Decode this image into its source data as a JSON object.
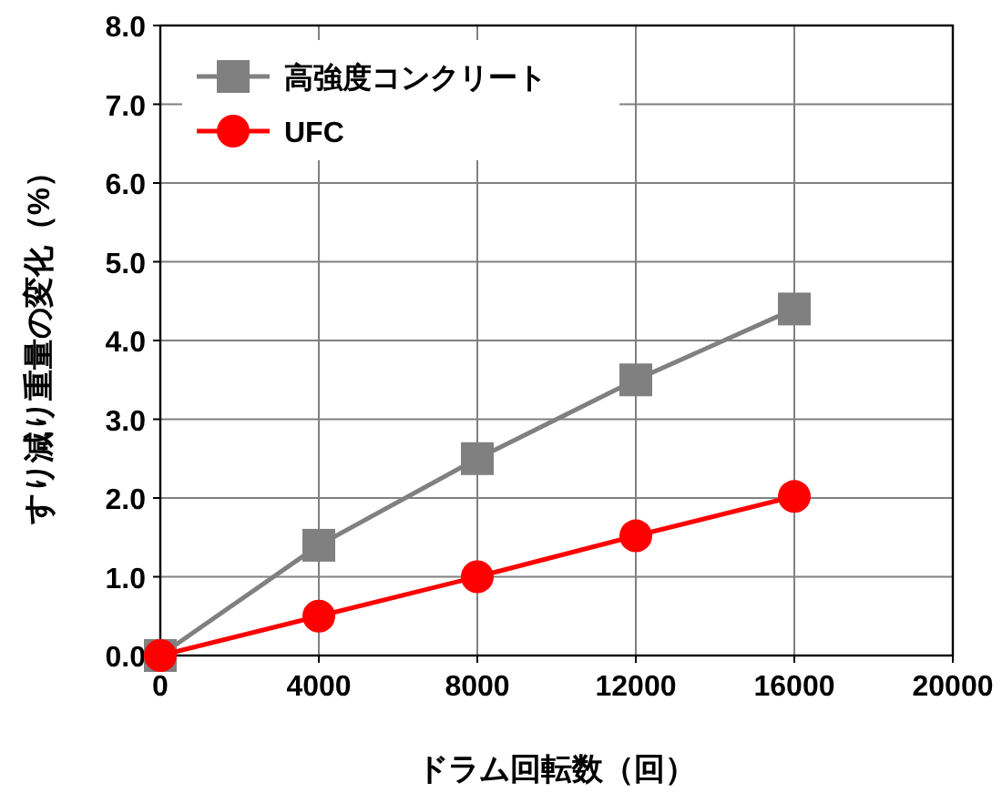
{
  "chart_data": {
    "type": "line",
    "xlabel": "ドラム回転数（回）",
    "ylabel": "すり減り重量の変化（%）",
    "x": [
      0,
      4000,
      8000,
      12000,
      16000
    ],
    "series": [
      {
        "name": "高強度コンクリート",
        "color": "#808080",
        "marker": "square",
        "values": [
          0,
          1.4,
          2.5,
          3.5,
          4.4
        ]
      },
      {
        "name": "UFC",
        "color": "#ff0000",
        "marker": "circle",
        "values": [
          0,
          0.5,
          1.0,
          1.52,
          2.02
        ]
      }
    ],
    "xlim": [
      0,
      20000
    ],
    "xticks": [
      0,
      4000,
      8000,
      12000,
      16000,
      20000
    ],
    "ylim": [
      0,
      8
    ],
    "yticks": [
      {
        "value": 0,
        "label": "0.0"
      },
      {
        "value": 1,
        "label": "1.0"
      },
      {
        "value": 2,
        "label": "2.0"
      },
      {
        "value": 3,
        "label": "3.0"
      },
      {
        "value": 4,
        "label": "4.0"
      },
      {
        "value": 5,
        "label": "5.0"
      },
      {
        "value": 6,
        "label": "6.0"
      },
      {
        "value": 7,
        "label": "7.0"
      },
      {
        "value": 8,
        "label": "8.0"
      }
    ],
    "grid": true,
    "legend": "top left",
    "line_style": "solid"
  }
}
